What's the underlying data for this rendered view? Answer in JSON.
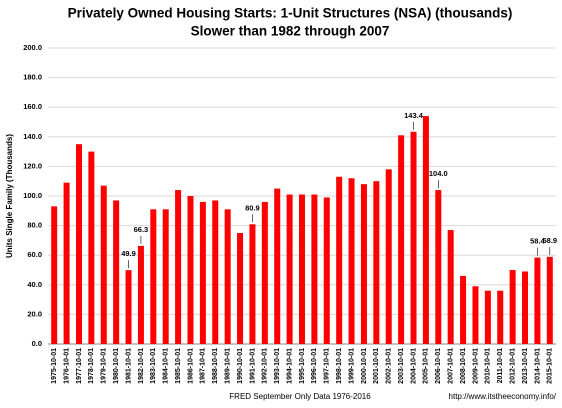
{
  "chart_data": {
    "type": "bar",
    "title": "Privately Owned Housing Starts: 1-Unit Structures (NSA) (thousands)",
    "subtitle": "Slower than 1982 through 2007",
    "x_label": "FRED September Only Data 1976-2016",
    "y_label": "Units Single Family (Thousands)",
    "source": "http://www.itstheeconomy.info/",
    "categories": [
      "1975-10-01",
      "1976-10-01",
      "1977-10-01",
      "1978-10-01",
      "1979-10-01",
      "1980-10-01",
      "1981-10-01",
      "1982-10-01",
      "1983-10-01",
      "1984-10-01",
      "1985-10-01",
      "1986-10-01",
      "1987-10-01",
      "1988-10-01",
      "1989-10-01",
      "1990-10-01",
      "1991-10-01",
      "1992-10-01",
      "1993-10-01",
      "1994-10-01",
      "1995-10-01",
      "1996-10-01",
      "1997-10-01",
      "1998-10-01",
      "1999-10-01",
      "2000-10-01",
      "2001-10-01",
      "2002-10-01",
      "2003-10-01",
      "2004-10-01",
      "2005-10-01",
      "2006-10-01",
      "2007-10-01",
      "2008-10-01",
      "2009-10-01",
      "2010-10-01",
      "2011-10-01",
      "2012-10-01",
      "2013-10-01",
      "2014-10-01",
      "2015-10-01"
    ],
    "values": [
      93,
      109,
      135,
      130,
      107,
      97,
      49.9,
      66.3,
      91,
      91,
      104,
      100,
      96,
      97,
      91,
      75,
      80.9,
      96,
      105,
      101,
      101,
      101,
      99,
      113,
      112,
      108,
      110,
      118,
      141,
      143.4,
      154,
      104.0,
      77,
      46,
      39,
      36,
      36,
      50,
      49,
      58.4,
      58.9
    ],
    "value_labels": [
      null,
      null,
      null,
      null,
      null,
      null,
      "49.9",
      "66.3",
      null,
      null,
      null,
      null,
      null,
      null,
      null,
      null,
      "80.9",
      null,
      null,
      null,
      null,
      null,
      null,
      null,
      null,
      null,
      null,
      null,
      null,
      "143.4",
      null,
      "104.0",
      null,
      null,
      null,
      null,
      null,
      null,
      null,
      "58.4",
      "58.9"
    ],
    "color": "#ff0000",
    "ylim": [
      0,
      200
    ],
    "yticks": [
      {
        "value": 0,
        "label": "0.0"
      },
      {
        "value": 20,
        "label": "20.0"
      },
      {
        "value": 40,
        "label": "40.0"
      },
      {
        "value": 60,
        "label": "60.0"
      },
      {
        "value": 80,
        "label": "80.0"
      },
      {
        "value": 100,
        "label": "100.0"
      },
      {
        "value": 120,
        "label": "120.0"
      },
      {
        "value": 140,
        "label": "140.0"
      },
      {
        "value": 160,
        "label": "160.0"
      },
      {
        "value": 180,
        "label": "180.0"
      },
      {
        "value": 200,
        "label": "200.0"
      }
    ],
    "grid": true
  }
}
